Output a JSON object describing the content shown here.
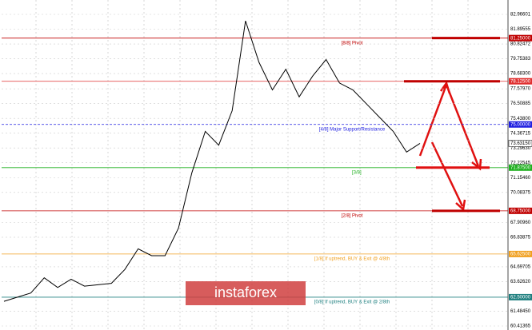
{
  "chart_data": {
    "type": "line",
    "values": [
      62.2,
      62.5,
      62.8,
      63.9,
      63.2,
      63.8,
      63.3,
      63.4,
      63.5,
      64.5,
      66.0,
      65.5,
      65.5,
      67.5,
      71.5,
      74.5,
      73.5,
      76.0,
      82.5,
      79.5,
      77.5,
      79.0,
      77.0,
      78.5,
      79.7,
      78.0,
      77.5,
      76.5,
      75.5,
      74.5,
      73.0,
      73.6315
    ],
    "color": "#000000",
    "ylim": [
      60.41365,
      82.96601
    ],
    "yticks": [
      {
        "value": 82.96601,
        "label": "82.96601"
      },
      {
        "value": 81.89555,
        "label": "81.89555"
      },
      {
        "value": 80.82472,
        "label": "80.82472"
      },
      {
        "value": 79.75383,
        "label": "79.75383"
      },
      {
        "value": 78.683,
        "label": "78.68300"
      },
      {
        "value": 77.5797,
        "label": "77.57970"
      },
      {
        "value": 76.50885,
        "label": "76.50885"
      },
      {
        "value": 75.438,
        "label": "75.43800"
      },
      {
        "value": 74.36715,
        "label": "74.36715"
      },
      {
        "value": 73.2963,
        "label": "73.29630"
      },
      {
        "value": 72.22545,
        "label": "72.22545"
      },
      {
        "value": 71.1546,
        "label": "71.15460"
      },
      {
        "value": 70.08375,
        "label": "70.08375"
      },
      {
        "value": 67.9096,
        "label": "67.90960"
      },
      {
        "value": 66.83875,
        "label": "66.83875"
      },
      {
        "value": 64.69705,
        "label": "64.69705"
      },
      {
        "value": 63.6262,
        "label": "63.62620"
      },
      {
        "value": 61.4845,
        "label": "61.48450"
      },
      {
        "value": 60.41365,
        "label": "60.41365"
      }
    ],
    "last_price": {
      "value": 73.6315,
      "label": "73.63150"
    },
    "levels": [
      {
        "value": 81.25,
        "label": "81.25000",
        "color": "#c00000",
        "text": "[8/8] Pivot"
      },
      {
        "value": 78.125,
        "label": "78.12500",
        "color": "#e03030"
      },
      {
        "value": 75.0,
        "label": "75.00000",
        "color": "#2020e0",
        "text": "[4/8] Major Support/Resistance"
      },
      {
        "value": 71.875,
        "label": "71.87500",
        "color": "#20b020",
        "text": "[3/8]"
      },
      {
        "value": 68.75,
        "label": "68.75000",
        "color": "#c00000",
        "text": "[2/8] Pivot"
      },
      {
        "value": 65.625,
        "label": "65.62500",
        "color": "#f0a020",
        "text": "[1/8] If uptrend, BUY & Exit @ 4/8th"
      },
      {
        "value": 62.5,
        "label": "62.50000",
        "color": "#208080",
        "text": "[0/8] If uptrend, BUY & Exit @ 2/8th"
      }
    ],
    "watermark": "instaforex"
  }
}
